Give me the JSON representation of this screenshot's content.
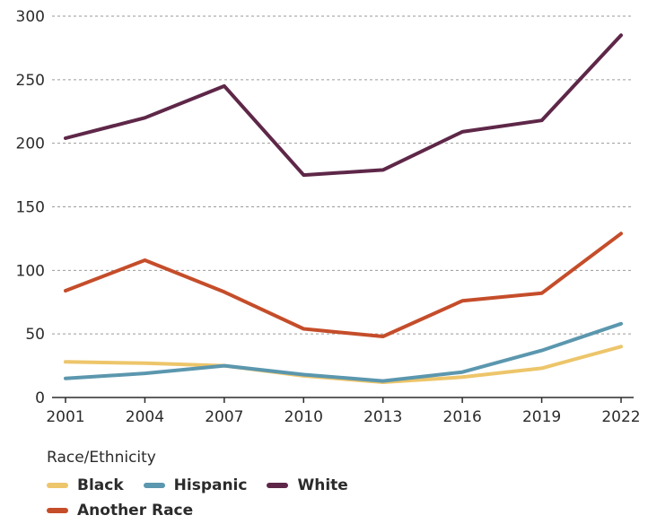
{
  "chart_data": {
    "type": "line",
    "x": [
      "2001",
      "2004",
      "2007",
      "2010",
      "2013",
      "2016",
      "2019",
      "2022"
    ],
    "yticks": [
      0,
      50,
      100,
      150,
      200,
      250,
      300
    ],
    "ylim": [
      0,
      300
    ],
    "grid": true,
    "legend_position": "bottom-left",
    "legend_title": "Race/Ethnicity",
    "series": [
      {
        "name": "Black",
        "color": "#EDC56A",
        "values": [
          28,
          27,
          25,
          17,
          12,
          16,
          23,
          40
        ]
      },
      {
        "name": "Hispanic",
        "color": "#5B97AE",
        "values": [
          15,
          19,
          25,
          18,
          13,
          20,
          37,
          58
        ]
      },
      {
        "name": "White",
        "color": "#5E2748",
        "values": [
          204,
          220,
          245,
          175,
          179,
          209,
          218,
          285
        ]
      },
      {
        "name": "Another Race",
        "color": "#C54D2A",
        "values": [
          84,
          108,
          83,
          54,
          48,
          76,
          82,
          129
        ]
      }
    ]
  }
}
